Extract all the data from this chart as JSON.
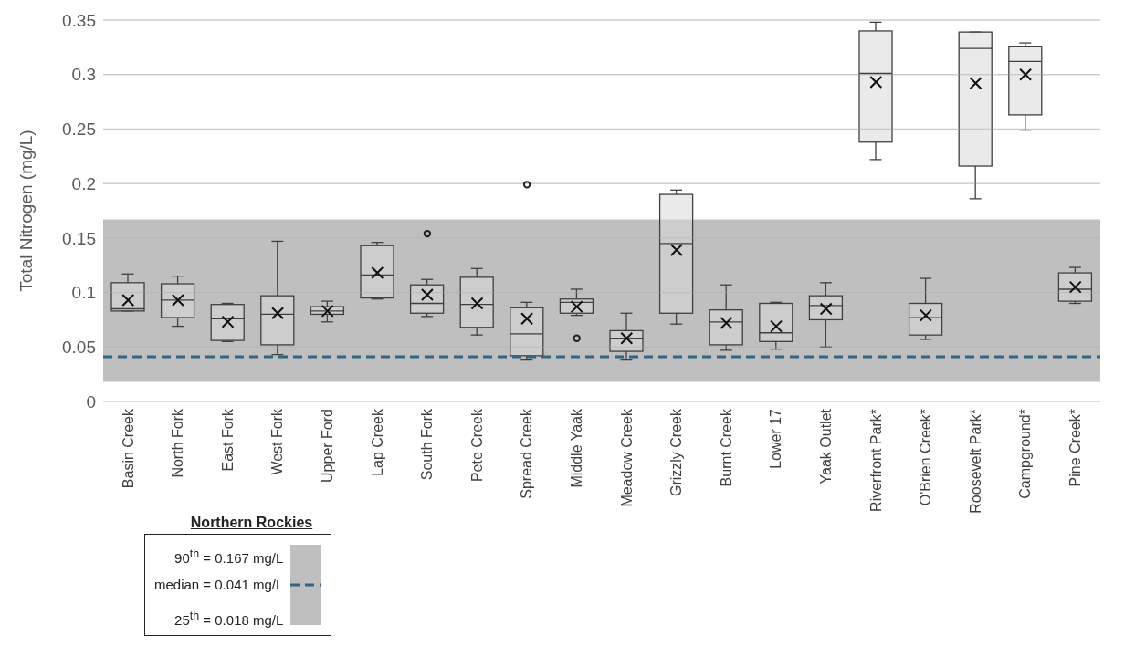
{
  "chart_data": {
    "type": "box",
    "ylabel": "Total Nitrogen (mg/L)",
    "categories": [
      "Basin Creek",
      "North Fork",
      "East Fork",
      "West Fork",
      "Upper Ford",
      "Lap Creek",
      "South Fork",
      "Pete Creek",
      "Spread Creek",
      "Middle Yaak",
      "Meadow Creek",
      "Grizzly Creek",
      "Burnt Creek",
      "Lower 17",
      "Yaak Outlet",
      "Riverfront Park*",
      "O'Brien Creek*",
      "Roosevelt Park*",
      "Campground*",
      "Pine Creek*"
    ],
    "color": "#d9d9d9",
    "boxes": [
      {
        "low": 0.083,
        "q1": 0.083,
        "median": 0.085,
        "q3": 0.109,
        "high": 0.117,
        "mean": 0.093
      },
      {
        "low": 0.069,
        "q1": 0.077,
        "median": 0.093,
        "q3": 0.108,
        "high": 0.115,
        "mean": 0.093
      },
      {
        "low": 0.055,
        "q1": 0.056,
        "median": 0.076,
        "q3": 0.089,
        "high": 0.09,
        "mean": 0.073
      },
      {
        "low": 0.043,
        "q1": 0.052,
        "median": 0.08,
        "q3": 0.097,
        "high": 0.147,
        "mean": 0.081
      },
      {
        "low": 0.073,
        "q1": 0.08,
        "median": 0.083,
        "q3": 0.087,
        "high": 0.092,
        "mean": 0.083
      },
      {
        "low": 0.094,
        "q1": 0.095,
        "median": 0.116,
        "q3": 0.143,
        "high": 0.146,
        "mean": 0.118
      },
      {
        "low": 0.078,
        "q1": 0.081,
        "median": 0.09,
        "q3": 0.107,
        "high": 0.112,
        "mean": 0.098,
        "outliers": [
          0.154
        ]
      },
      {
        "low": 0.061,
        "q1": 0.068,
        "median": 0.089,
        "q3": 0.114,
        "high": 0.122,
        "mean": 0.09
      },
      {
        "low": 0.038,
        "q1": 0.042,
        "median": 0.062,
        "q3": 0.086,
        "high": 0.091,
        "mean": 0.076,
        "outliers": [
          0.199
        ]
      },
      {
        "low": 0.079,
        "q1": 0.081,
        "median": 0.091,
        "q3": 0.094,
        "high": 0.103,
        "mean": 0.087,
        "outliers": [
          0.058
        ]
      },
      {
        "low": 0.038,
        "q1": 0.046,
        "median": 0.058,
        "q3": 0.065,
        "high": 0.081,
        "mean": 0.058
      },
      {
        "low": 0.071,
        "q1": 0.081,
        "median": 0.145,
        "q3": 0.19,
        "high": 0.194,
        "mean": 0.139
      },
      {
        "low": 0.047,
        "q1": 0.052,
        "median": 0.073,
        "q3": 0.084,
        "high": 0.107,
        "mean": 0.072
      },
      {
        "low": 0.048,
        "q1": 0.055,
        "median": 0.063,
        "q3": 0.09,
        "high": 0.091,
        "mean": 0.069
      },
      {
        "low": 0.05,
        "q1": 0.075,
        "median": 0.088,
        "q3": 0.097,
        "high": 0.109,
        "mean": 0.085
      },
      {
        "low": 0.222,
        "q1": 0.238,
        "median": 0.301,
        "q3": 0.34,
        "high": 0.348,
        "mean": 0.293
      },
      {
        "low": 0.057,
        "q1": 0.061,
        "median": 0.077,
        "q3": 0.09,
        "high": 0.113,
        "mean": 0.079
      },
      {
        "low": 0.186,
        "q1": 0.216,
        "median": 0.324,
        "q3": 0.339,
        "high": 0.339,
        "mean": 0.292
      },
      {
        "low": 0.249,
        "q1": 0.263,
        "median": 0.312,
        "q3": 0.326,
        "high": 0.329,
        "mean": 0.3
      },
      {
        "low": 0.09,
        "q1": 0.092,
        "median": 0.103,
        "q3": 0.118,
        "high": 0.123,
        "mean": 0.105
      }
    ],
    "ylim": [
      0,
      0.35
    ],
    "yticks": [
      0,
      0.05,
      0.1,
      0.15,
      0.2,
      0.25,
      0.3,
      0.35
    ],
    "grid": "y",
    "bands": [
      {
        "axis": "y",
        "from": 0.018,
        "to": 0.167,
        "color": "#bfbfbf"
      }
    ],
    "ref_lines": [
      {
        "axis": "y",
        "value": 0.041,
        "label": "median = 0.041 mg/L",
        "color": "#2f6585",
        "line_style": "dashed"
      }
    ],
    "annotations": [
      "90$^{th}$ = 0.167 mg/L",
      "25$^{th}$ = 0.018 mg/L"
    ],
    "legend": "bottom left",
    "legend_title": "Northern Rockies"
  }
}
